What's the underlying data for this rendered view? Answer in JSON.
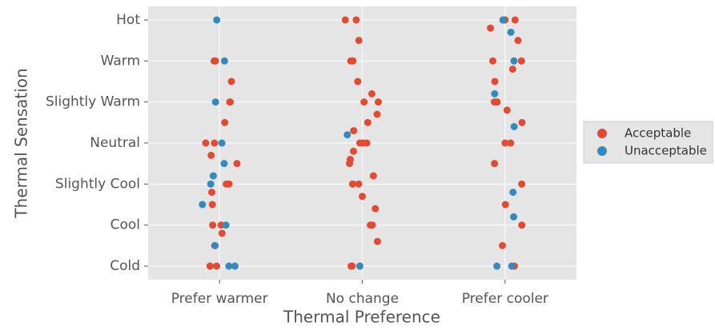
{
  "chart_data": {
    "type": "strip",
    "x_label": "Thermal Preference",
    "y_label": "Thermal Sensation",
    "categories": [
      "Prefer warmer",
      "No change",
      "Prefer cooler"
    ],
    "ylim": [
      -3.33,
      3.33
    ],
    "yticks": [
      {
        "value": -3,
        "label": "Cold"
      },
      {
        "value": -2,
        "label": "Cool"
      },
      {
        "value": -1,
        "label": "Slightly Cool"
      },
      {
        "value": 0,
        "label": "Neutral"
      },
      {
        "value": 1,
        "label": "Slightly Warm"
      },
      {
        "value": 2,
        "label": "Warm"
      },
      {
        "value": 3,
        "label": "Hot"
      }
    ],
    "grid": true,
    "legend": "right",
    "series": [
      {
        "name": "Acceptable",
        "color": "#e24a33",
        "x": [
          "Prefer warmer",
          "Prefer warmer",
          "Prefer warmer",
          "Prefer warmer",
          "Prefer warmer",
          "Prefer warmer",
          "Prefer warmer",
          "Prefer warmer",
          "Prefer warmer",
          "Prefer warmer",
          "Prefer warmer",
          "Prefer warmer",
          "Prefer warmer",
          "Prefer warmer",
          "Prefer warmer",
          "Prefer warmer",
          "Prefer warmer",
          "Prefer warmer",
          "Prefer warmer",
          "Prefer warmer",
          "No change",
          "No change",
          "No change",
          "No change",
          "No change",
          "No change",
          "No change",
          "No change",
          "No change",
          "No change",
          "No change",
          "No change",
          "No change",
          "No change",
          "No change",
          "No change",
          "No change",
          "No change",
          "No change",
          "No change",
          "No change",
          "No change",
          "No change",
          "No change",
          "No change",
          "No change",
          "No change",
          "No change",
          "Prefer cooler",
          "Prefer cooler",
          "Prefer cooler",
          "Prefer cooler",
          "Prefer cooler",
          "Prefer cooler",
          "Prefer cooler",
          "Prefer cooler",
          "Prefer cooler",
          "Prefer cooler",
          "Prefer cooler",
          "Prefer cooler",
          "Prefer cooler",
          "Prefer cooler",
          "Prefer cooler",
          "Prefer cooler",
          "Prefer cooler",
          "Prefer cooler",
          "Prefer cooler",
          "Prefer cooler"
        ],
        "values": [
          2,
          2,
          1,
          1,
          0.5,
          0,
          0,
          -0.5,
          -1,
          -1,
          -1.5,
          -2,
          -2,
          -2.5,
          -3,
          -3,
          1.5,
          -0.3,
          -1.2,
          -2.2,
          3,
          3,
          2,
          2,
          1.5,
          1,
          1,
          0.5,
          0.3,
          0,
          0,
          0,
          -0.2,
          -0.5,
          -0.8,
          -1,
          -1,
          -1.3,
          -1.6,
          -2,
          -2,
          -2.4,
          -3,
          -3,
          2.5,
          1.2,
          0.7,
          -0.4,
          3,
          3,
          2.8,
          2.5,
          2,
          2,
          1.5,
          1,
          1,
          0.5,
          0,
          0,
          -0.5,
          -1,
          -1.5,
          -2,
          -2.5,
          -3,
          1.8,
          0.8
        ]
      },
      {
        "name": "Unacceptable",
        "color": "#348abd",
        "x": [
          "Prefer warmer",
          "Prefer warmer",
          "Prefer warmer",
          "Prefer warmer",
          "Prefer warmer",
          "Prefer warmer",
          "Prefer warmer",
          "Prefer warmer",
          "Prefer warmer",
          "Prefer warmer",
          "Prefer warmer",
          "Prefer warmer",
          "No change",
          "No change",
          "Prefer cooler",
          "Prefer cooler",
          "Prefer cooler",
          "Prefer cooler",
          "Prefer cooler",
          "Prefer cooler",
          "Prefer cooler",
          "Prefer cooler",
          "Prefer cooler",
          "Prefer cooler"
        ],
        "values": [
          3,
          2,
          1,
          0,
          -0.5,
          -1,
          -1.5,
          -2,
          -2.5,
          -3,
          -3,
          -0.8,
          -3,
          0.2,
          3,
          3,
          2.7,
          2,
          1.2,
          0.4,
          -1.2,
          -1.8,
          -3,
          -3
        ]
      }
    ]
  }
}
